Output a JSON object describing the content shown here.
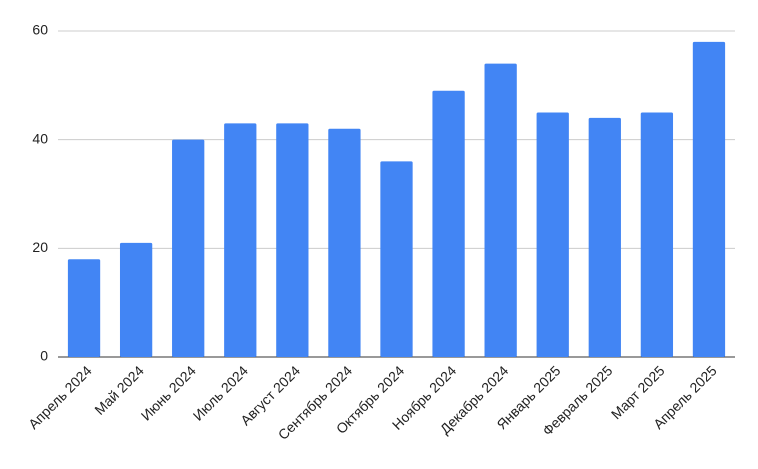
{
  "chart_data": {
    "type": "bar",
    "categories": [
      "Апрель 2024",
      "Май 2024",
      "Июнь 2024",
      "Июль 2024",
      "Август 2024",
      "Сентябрь 2024",
      "Октябрь 2024",
      "Ноябрь 2024",
      "Декабрь 2024",
      "Январь 2025",
      "Февраль 2025",
      "Март 2025",
      "Апрель 2025"
    ],
    "values": [
      18,
      21,
      40,
      43,
      43,
      42,
      36,
      49,
      54,
      45,
      44,
      45,
      58
    ],
    "color": "#4285f4",
    "ylim": [
      0,
      60
    ],
    "yticks": [
      0,
      20,
      40,
      60
    ],
    "grid": true
  }
}
